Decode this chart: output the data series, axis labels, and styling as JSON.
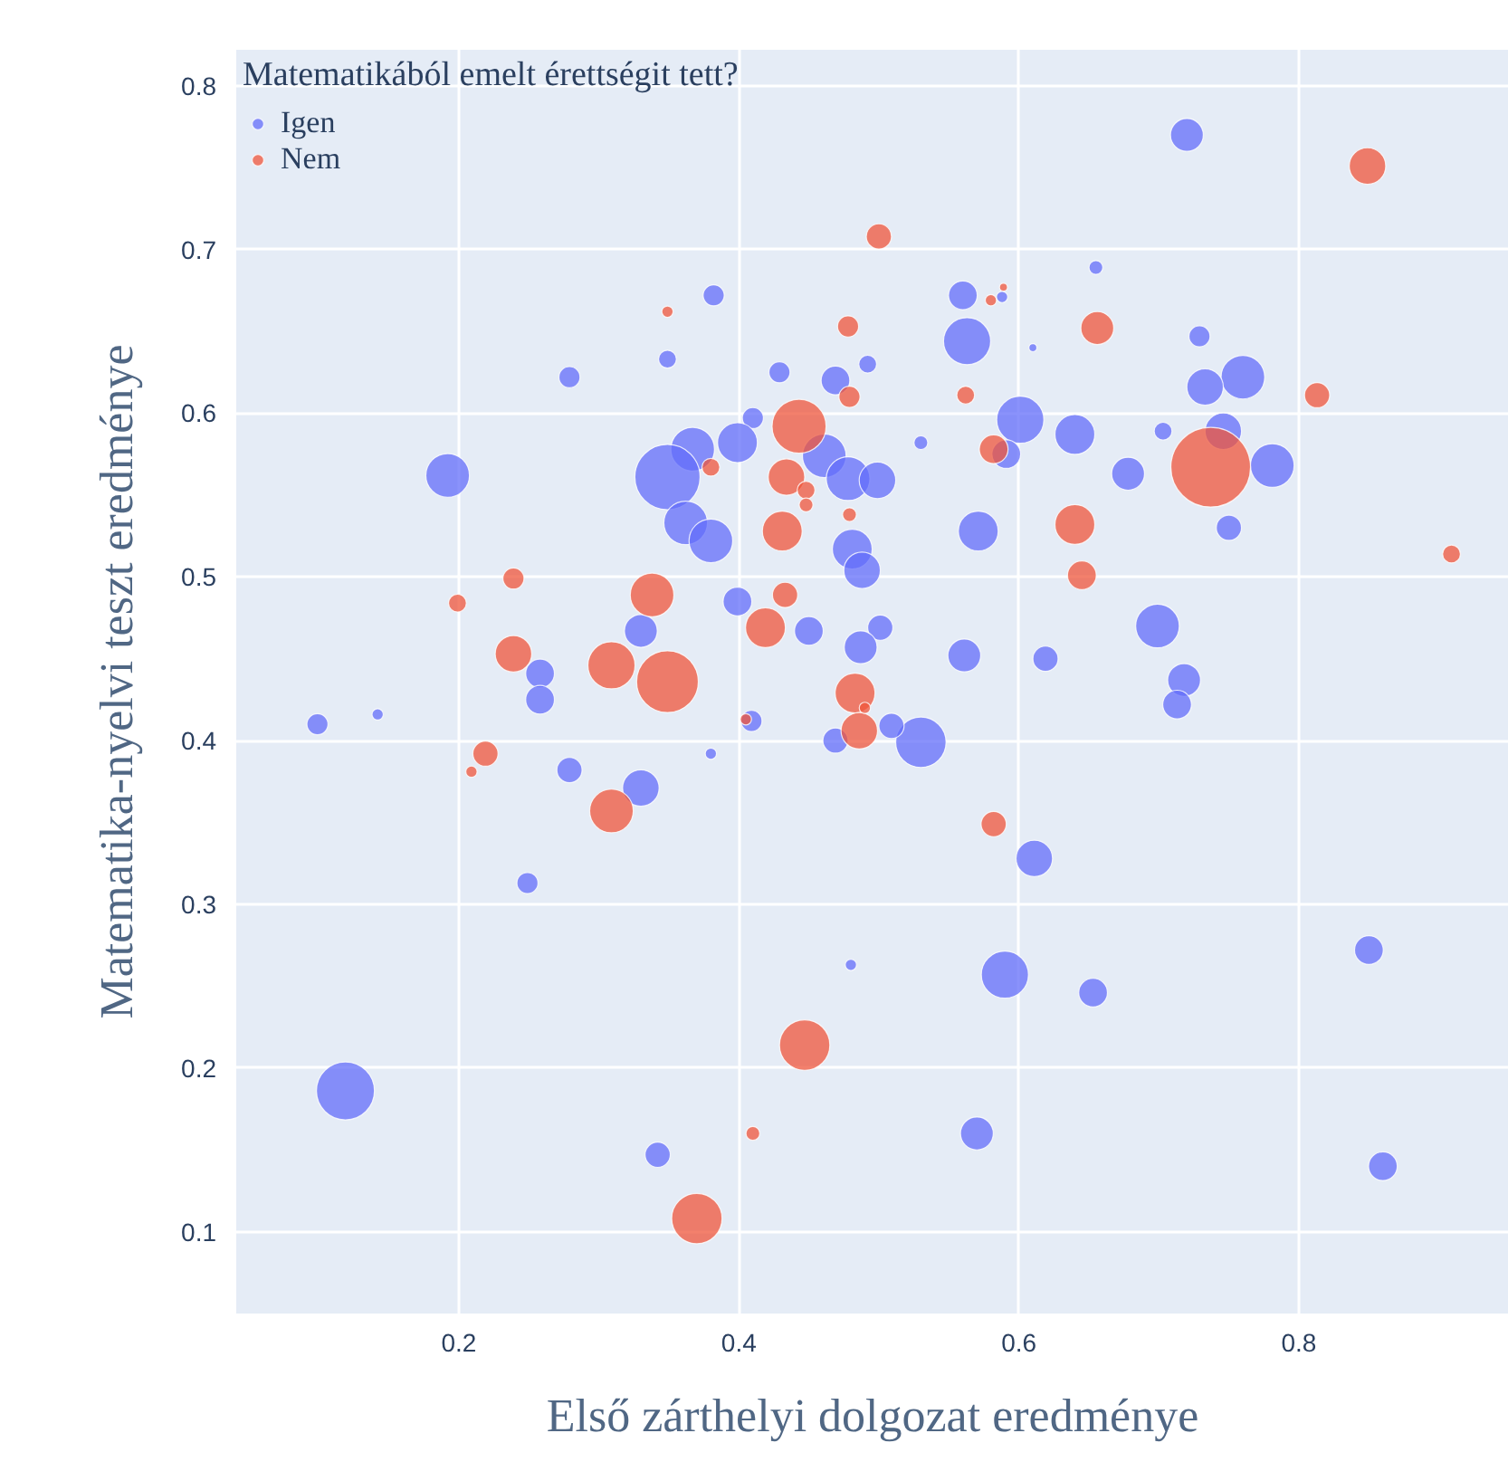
{
  "chart_data": {
    "type": "bubble",
    "xlabel": "Első zárthelyi dolgozat eredménye",
    "ylabel": "Matematika-nyelvi teszt eredménye",
    "legend_title": "Matematikából emelt érettségit tett?",
    "xlim": [
      0.041,
      0.95
    ],
    "ylim": [
      0.05,
      0.822
    ],
    "xticks": [
      0.2,
      0.4,
      0.6,
      0.8
    ],
    "yticks": [
      0.1,
      0.2,
      0.3,
      0.4,
      0.5,
      0.6,
      0.7,
      0.8
    ],
    "grid": true,
    "legend": "top left",
    "marker": "circle",
    "series": [
      {
        "name": "Igen",
        "color": "#636efa",
        "x": [
          0.72,
          0.655,
          0.382,
          0.56,
          0.588,
          0.729,
          0.563,
          0.61,
          0.279,
          0.349,
          0.429,
          0.469,
          0.492,
          0.76,
          0.733,
          0.746,
          0.601,
          0.64,
          0.41,
          0.399,
          0.367,
          0.192,
          0.349,
          0.461,
          0.478,
          0.499,
          0.53,
          0.591,
          0.703,
          0.678,
          0.781,
          0.362,
          0.38,
          0.571,
          0.481,
          0.488,
          0.75,
          0.399,
          0.501,
          0.45,
          0.487,
          0.561,
          0.619,
          0.699,
          0.718,
          0.713,
          0.258,
          0.258,
          0.33,
          0.279,
          0.099,
          0.142,
          0.249,
          0.119,
          0.342,
          0.38,
          0.409,
          0.469,
          0.53,
          0.509,
          0.611,
          0.59,
          0.48,
          0.57,
          0.653,
          0.85,
          0.86,
          0.33
        ],
        "values": [
          0.77,
          0.689,
          0.672,
          0.672,
          0.671,
          0.647,
          0.644,
          0.64,
          0.622,
          0.633,
          0.625,
          0.62,
          0.63,
          0.622,
          0.616,
          0.589,
          0.596,
          0.587,
          0.597,
          0.582,
          0.578,
          0.562,
          0.561,
          0.574,
          0.56,
          0.559,
          0.582,
          0.575,
          0.589,
          0.563,
          0.568,
          0.533,
          0.522,
          0.528,
          0.517,
          0.504,
          0.53,
          0.485,
          0.469,
          0.467,
          0.457,
          0.452,
          0.45,
          0.47,
          0.437,
          0.422,
          0.441,
          0.425,
          0.371,
          0.382,
          0.41,
          0.416,
          0.313,
          0.186,
          0.147,
          0.392,
          0.412,
          0.4,
          0.399,
          0.409,
          0.328,
          0.257,
          0.263,
          0.16,
          0.246,
          0.272,
          0.14,
          0.467
        ],
        "sizes": [
          0.17,
          0.03,
          0.07,
          0.13,
          0.02,
          0.07,
          0.35,
          0.01,
          0.07,
          0.05,
          0.07,
          0.13,
          0.05,
          0.3,
          0.21,
          0.21,
          0.35,
          0.25,
          0.07,
          0.25,
          0.3,
          0.3,
          0.67,
          0.3,
          0.3,
          0.21,
          0.03,
          0.13,
          0.05,
          0.17,
          0.3,
          0.3,
          0.3,
          0.25,
          0.25,
          0.21,
          0.1,
          0.13,
          0.1,
          0.13,
          0.17,
          0.17,
          0.1,
          0.3,
          0.17,
          0.13,
          0.13,
          0.13,
          0.21,
          0.1,
          0.07,
          0.02,
          0.07,
          0.53,
          0.1,
          0.02,
          0.07,
          0.1,
          0.4,
          0.1,
          0.21,
          0.35,
          0.02,
          0.17,
          0.13,
          0.13,
          0.13,
          0.17
        ]
      },
      {
        "name": "Nem",
        "color": "#ef553b",
        "x": [
          0.849,
          0.5,
          0.349,
          0.478,
          0.656,
          0.58,
          0.589,
          0.479,
          0.562,
          0.813,
          0.443,
          0.38,
          0.582,
          0.737,
          0.434,
          0.448,
          0.448,
          0.479,
          0.431,
          0.64,
          0.645,
          0.239,
          0.199,
          0.338,
          0.433,
          0.909,
          0.419,
          0.239,
          0.309,
          0.349,
          0.483,
          0.486,
          0.219,
          0.209,
          0.309,
          0.405,
          0.582,
          0.447,
          0.41,
          0.37,
          0.49
        ],
        "values": [
          0.751,
          0.708,
          0.662,
          0.653,
          0.652,
          0.669,
          0.677,
          0.61,
          0.611,
          0.611,
          0.592,
          0.567,
          0.578,
          0.567,
          0.561,
          0.553,
          0.544,
          0.538,
          0.528,
          0.532,
          0.501,
          0.499,
          0.484,
          0.489,
          0.489,
          0.514,
          0.469,
          0.453,
          0.446,
          0.436,
          0.429,
          0.406,
          0.392,
          0.381,
          0.357,
          0.413,
          0.349,
          0.214,
          0.16,
          0.108,
          0.42
        ],
        "sizes": [
          0.21,
          0.1,
          0.02,
          0.07,
          0.17,
          0.02,
          0.01,
          0.07,
          0.05,
          0.1,
          0.46,
          0.05,
          0.13,
          1,
          0.21,
          0.05,
          0.03,
          0.03,
          0.25,
          0.25,
          0.13,
          0.07,
          0.05,
          0.3,
          0.1,
          0.05,
          0.25,
          0.21,
          0.35,
          0.6,
          0.25,
          0.21,
          0.1,
          0.02,
          0.3,
          0.02,
          0.1,
          0.4,
          0.03,
          0.4,
          0.02
        ]
      }
    ]
  }
}
